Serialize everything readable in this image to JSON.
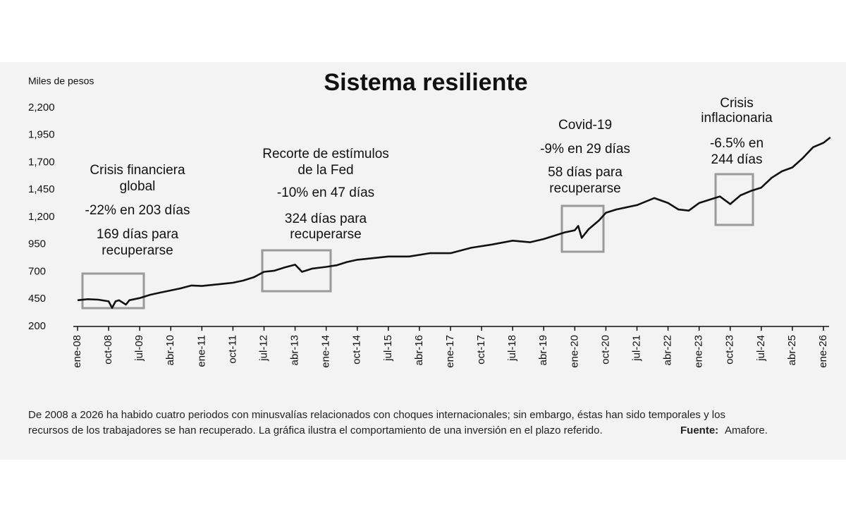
{
  "chart_data": {
    "type": "line",
    "title": "Sistema resiliente",
    "y_axis_label": "Miles de pesos",
    "ylim": [
      200,
      2200
    ],
    "yticks": [
      200,
      450,
      700,
      950,
      {
        "value": 1200,
        "label": "1,200"
      },
      {
        "value": 1450,
        "label": "1,450"
      },
      {
        "value": 1700,
        "label": "1,700"
      },
      {
        "value": 1950,
        "label": "1,950"
      },
      {
        "value": 2200,
        "label": "2,200"
      }
    ],
    "xlim": [
      "2008-01",
      "2026-01"
    ],
    "xticks": [
      {
        "value": "2008-01",
        "label": "ene-08"
      },
      {
        "value": "2008-10",
        "label": "oct-08"
      },
      {
        "value": "2009-07",
        "label": "jul-09"
      },
      {
        "value": "2010-04",
        "label": "abr-10"
      },
      {
        "value": "2011-01",
        "label": "ene-11"
      },
      {
        "value": "2011-10",
        "label": "oct-11"
      },
      {
        "value": "2012-07",
        "label": "jul-12"
      },
      {
        "value": "2013-04",
        "label": "abr-13"
      },
      {
        "value": "2014-01",
        "label": "ene-14"
      },
      {
        "value": "2014-10",
        "label": "oct-14"
      },
      {
        "value": "2015-07",
        "label": "jul-15"
      },
      {
        "value": "2016-04",
        "label": "abr-16"
      },
      {
        "value": "2017-01",
        "label": "ene-17"
      },
      {
        "value": "2017-10",
        "label": "oct-17"
      },
      {
        "value": "2018-07",
        "label": "jul-18"
      },
      {
        "value": "2019-04",
        "label": "abr-19"
      },
      {
        "value": "2020-01",
        "label": "ene-20"
      },
      {
        "value": "2020-10",
        "label": "oct-20"
      },
      {
        "value": "2021-07",
        "label": "jul-21"
      },
      {
        "value": "2022-04",
        "label": "abr-22"
      },
      {
        "value": "2023-01",
        "label": "ene-23"
      },
      {
        "value": "2023-10",
        "label": "oct-23"
      },
      {
        "value": "2024-07",
        "label": "jul-24"
      },
      {
        "value": "2025-04",
        "label": "abr-25"
      },
      {
        "value": "2026-01",
        "label": "ene-26"
      }
    ],
    "color": "#111111",
    "x": [
      "2008-01",
      "2008-04",
      "2008-07",
      "2008-10",
      "2008-11",
      "2008-12",
      "2009-01",
      "2009-03",
      "2009-04",
      "2009-07",
      "2009-10",
      "2010-01",
      "2010-04",
      "2010-07",
      "2010-10",
      "2011-01",
      "2011-04",
      "2011-07",
      "2011-10",
      "2012-01",
      "2012-04",
      "2012-07",
      "2012-10",
      "2013-01",
      "2013-04",
      "2013-06",
      "2013-09",
      "2014-01",
      "2014-04",
      "2014-07",
      "2014-10",
      "2015-01",
      "2015-07",
      "2016-01",
      "2016-07",
      "2017-01",
      "2017-07",
      "2018-01",
      "2018-07",
      "2018-12",
      "2019-04",
      "2019-10",
      "2020-01",
      "2020-02",
      "2020-03",
      "2020-05",
      "2020-08",
      "2020-10",
      "2021-01",
      "2021-07",
      "2021-12",
      "2022-04",
      "2022-07",
      "2022-10",
      "2023-01",
      "2023-04",
      "2023-07",
      "2023-10",
      "2024-01",
      "2024-04",
      "2024-07",
      "2024-10",
      "2025-01",
      "2025-04",
      "2025-07",
      "2025-10",
      "2026-01",
      "2026-03"
    ],
    "values": [
      440,
      450,
      445,
      430,
      370,
      430,
      440,
      400,
      440,
      460,
      490,
      510,
      530,
      550,
      575,
      570,
      580,
      590,
      600,
      620,
      650,
      700,
      710,
      740,
      765,
      700,
      730,
      745,
      760,
      790,
      810,
      820,
      840,
      840,
      870,
      870,
      920,
      950,
      985,
      970,
      1000,
      1060,
      1080,
      1120,
      1010,
      1090,
      1170,
      1240,
      1270,
      1310,
      1375,
      1330,
      1270,
      1260,
      1330,
      1360,
      1390,
      1320,
      1400,
      1440,
      1470,
      1560,
      1620,
      1655,
      1740,
      1840,
      1880,
      1930
    ],
    "annotations": [
      {
        "lines": [
          "Crisis financiera",
          "global",
          "-22% en 203 días",
          "169 días para",
          "recuperarse"
        ]
      },
      {
        "lines": [
          "Recorte de estímulos",
          "de la Fed",
          "-10% en 47 días",
          "324 días para",
          "recuperarse"
        ]
      },
      {
        "lines": [
          "Covid-19",
          "-9% en 29 días",
          "58 días para",
          "recuperarse"
        ]
      },
      {
        "lines": [
          "Crisis",
          "inflacionaria",
          "-6.5% en",
          "244 días"
        ]
      }
    ],
    "note": [
      "De 2008 a 2026 ha habido cuatro periodos con minusvalías relacionados con choques internacionales; sin embargo, éstas han sido temporales y los",
      "recursos de los trabajadores se han recuperado. La gráfica ilustra el comportamiento de una inversión en el plazo referido."
    ],
    "source_label": "Fuente:",
    "source": "Amafore."
  }
}
